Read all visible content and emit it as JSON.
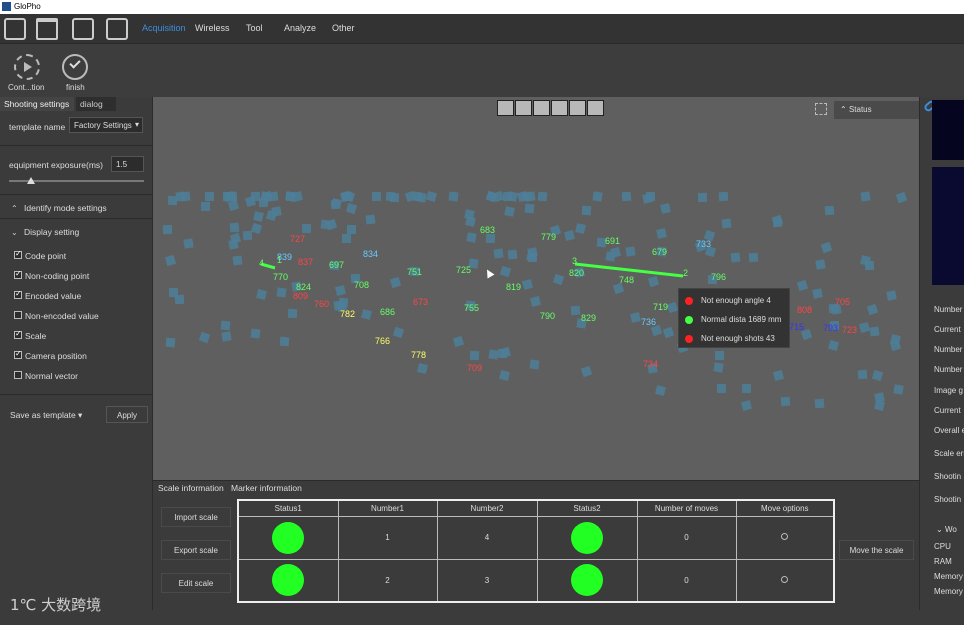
{
  "app": {
    "title": "GloPho"
  },
  "menu": [
    "Acquisition",
    "Wireless",
    "Tool",
    "Analyze",
    "Other"
  ],
  "toolbar": {
    "continuous_label": "Cont...tion",
    "finish_label": "finish"
  },
  "left_panel": {
    "tabs": [
      "Shooting settings",
      "dialog"
    ],
    "template_label": "template name",
    "template_value": "Factory Settings",
    "exposure_label": "equipment exposure(ms)",
    "exposure_value": "1.5",
    "identify_section": "Identify mode settings",
    "display_section": "Display setting",
    "checkboxes": [
      {
        "label": "Code point",
        "checked": true
      },
      {
        "label": "Non-coding point",
        "checked": true
      },
      {
        "label": "Encoded value",
        "checked": true
      },
      {
        "label": "Non-encoded value",
        "checked": false
      },
      {
        "label": "Scale",
        "checked": true
      },
      {
        "label": "Camera position",
        "checked": true
      },
      {
        "label": "Normal vector",
        "checked": false
      }
    ],
    "save_template": "Save as template",
    "apply": "Apply"
  },
  "viewport": {
    "status_header": "Status",
    "tooltip": [
      {
        "text": "Not enough angle  4",
        "color": "#ff2222"
      },
      {
        "text": "Normal dista  1689 mm",
        "color": "#44ff44"
      },
      {
        "text": "Not enough shots  43",
        "color": "#ff2222"
      }
    ],
    "points": [
      {
        "t": "683",
        "c": "#6f6"
      },
      {
        "t": "779",
        "c": "#6f6"
      },
      {
        "t": "691",
        "c": "#6f6"
      },
      {
        "t": "679",
        "c": "#6f6"
      },
      {
        "t": "733",
        "c": "#6cf"
      },
      {
        "t": "834",
        "c": "#6cf"
      },
      {
        "t": "697",
        "c": "#6f6"
      },
      {
        "t": "751",
        "c": "#6f6"
      },
      {
        "t": "725",
        "c": "#6f6"
      },
      {
        "t": "820",
        "c": "#6f6"
      },
      {
        "t": "748",
        "c": "#6f6"
      },
      {
        "t": "796",
        "c": "#6f6"
      },
      {
        "t": "819",
        "c": "#6f6"
      },
      {
        "t": "708",
        "c": "#6f6"
      },
      {
        "t": "824",
        "c": "#6f6"
      },
      {
        "t": "673",
        "c": "#f44"
      },
      {
        "t": "760",
        "c": "#f44"
      },
      {
        "t": "782",
        "c": "#ff6"
      },
      {
        "t": "686",
        "c": "#6f6"
      },
      {
        "t": "755",
        "c": "#6f6"
      },
      {
        "t": "790",
        "c": "#6f6"
      },
      {
        "t": "829",
        "c": "#6f6"
      },
      {
        "t": "719",
        "c": "#6f6"
      },
      {
        "t": "736",
        "c": "#6cf"
      },
      {
        "t": "766",
        "c": "#ff6"
      },
      {
        "t": "778",
        "c": "#ff6"
      },
      {
        "t": "709",
        "c": "#f44"
      },
      {
        "t": "734",
        "c": "#f44"
      },
      {
        "t": "808",
        "c": "#f44"
      },
      {
        "t": "705",
        "c": "#f44"
      },
      {
        "t": "793",
        "c": "#33f"
      },
      {
        "t": "723",
        "c": "#f44"
      },
      {
        "t": "715",
        "c": "#33f"
      },
      {
        "t": "727",
        "c": "#f44"
      },
      {
        "t": "837",
        "c": "#f44"
      },
      {
        "t": "770",
        "c": "#6f6"
      },
      {
        "t": "809",
        "c": "#f44"
      },
      {
        "t": "839",
        "c": "#6cf"
      },
      {
        "t": "3",
        "c": "#6f6"
      },
      {
        "t": "2",
        "c": "#6f6"
      },
      {
        "t": "1",
        "c": "#6f6"
      },
      {
        "t": "4",
        "c": "#6f6"
      }
    ]
  },
  "scale_panel": {
    "tabs": [
      "Scale information",
      "Marker information"
    ],
    "buttons": [
      "Import scale",
      "Export scale",
      "Edit scale"
    ],
    "move_button": "Move the scale",
    "columns": [
      "Status1",
      "Number1",
      "Number2",
      "Status2",
      "Number of moves",
      "Move options"
    ],
    "rows": [
      {
        "n1": "1",
        "n2": "4",
        "moves": "0"
      },
      {
        "n1": "2",
        "n2": "3",
        "moves": "0"
      }
    ]
  },
  "right_panel": {
    "labels": [
      "Number",
      "Current",
      "Number",
      "Number",
      "Image g",
      "Current",
      "Overall e",
      "Scale err",
      "Shootin",
      "Shootin"
    ],
    "work_section": "Wo",
    "stats": [
      "CPU",
      "RAM",
      "Memory",
      "Memory"
    ]
  },
  "watermark": "1℃ 大数跨境"
}
